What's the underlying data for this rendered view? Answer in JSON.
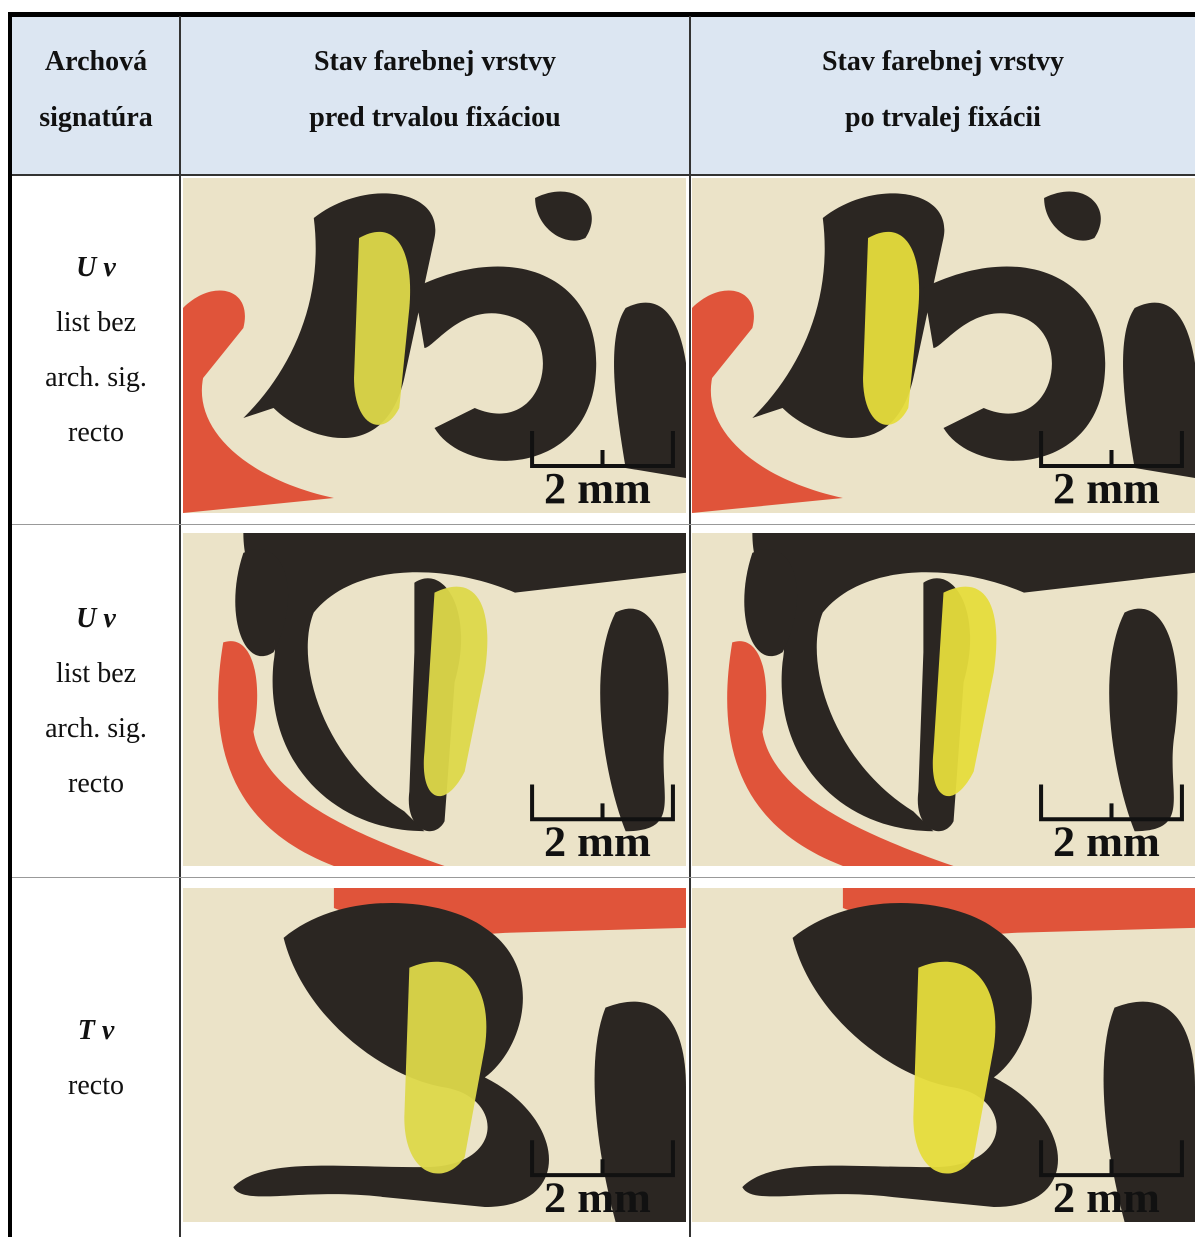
{
  "table": {
    "header": [
      [
        "Archová",
        "signatúra"
      ],
      [
        "Stav farebnej vrstvy",
        "pred trvalou fixáciou"
      ],
      [
        "Stav farebnej vrstvy",
        "po trvalej fixácii"
      ]
    ],
    "rows": [
      {
        "signature": "U v",
        "lines": [
          "list bez",
          "arch. sig.",
          "recto"
        ],
        "scale_labels": [
          "2 mm",
          "2 mm"
        ]
      },
      {
        "signature": "U v",
        "lines": [
          "list bez",
          "arch. sig.",
          "recto"
        ],
        "scale_labels": [
          "2 mm",
          "2 mm"
        ]
      },
      {
        "signature": "T v",
        "lines": [
          "recto"
        ],
        "scale_labels": [
          "2 mm",
          "2 mm"
        ]
      }
    ]
  }
}
